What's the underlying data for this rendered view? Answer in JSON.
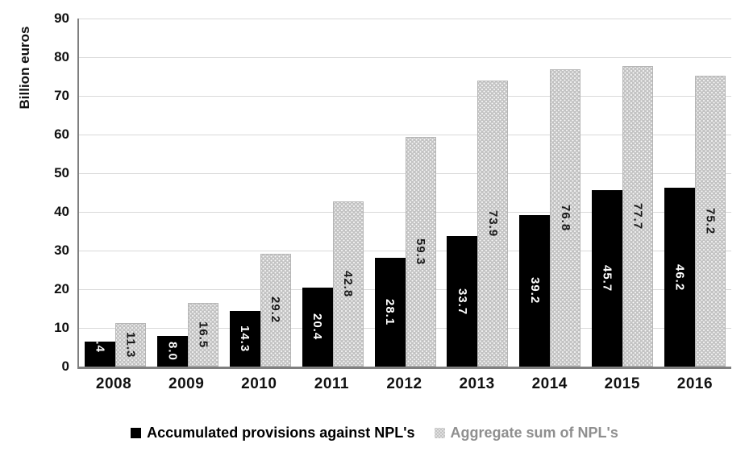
{
  "chart_data": {
    "type": "bar",
    "title": "",
    "xlabel": "",
    "ylabel": "Billion euros",
    "ylim": [
      0,
      90
    ],
    "ytick_step": 10,
    "grid": true,
    "legend_position": "bottom",
    "value_label_decimals": 1,
    "categories": [
      "2008",
      "2009",
      "2010",
      "2011",
      "2012",
      "2013",
      "2014",
      "2015",
      "2016"
    ],
    "series": [
      {
        "name": "Accumulated provisions against NPL's",
        "color": "#000000",
        "label_color": "#ffffff",
        "values": [
          6.4,
          8.0,
          14.3,
          20.4,
          28.1,
          33.7,
          39.2,
          45.7,
          46.2
        ]
      },
      {
        "name": "Aggregate sum of NPL's",
        "color": "#c3c3c3",
        "fill_pattern": "white-dots",
        "label_color": "#1a1a1a",
        "values": [
          11.3,
          16.5,
          29.2,
          42.8,
          59.3,
          73.9,
          76.8,
          77.7,
          75.2
        ]
      }
    ],
    "colors": {
      "axis_line": "#7f7f7f",
      "gridline": "#d9d9d9",
      "tick_text": "#111111",
      "legend_gray_text": "#8f8f8f"
    }
  }
}
